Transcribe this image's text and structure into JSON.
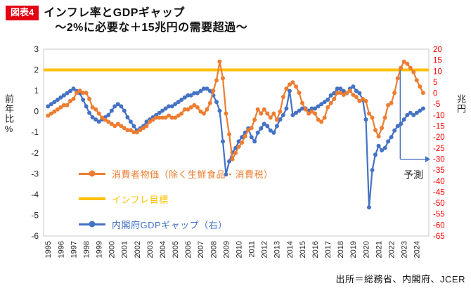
{
  "figure": {
    "label": "図表4",
    "label_bg": "#e50012",
    "title_line1": "インフレ率とGDPギャップ",
    "title_line2": "～2%に必要な＋15兆円の需要超過～",
    "source": "出所＝総務省、内閣府、JCER"
  },
  "chart_data": {
    "type": "line",
    "x_axis": {
      "start_year": 1995,
      "end_year": 2024,
      "tick_label_rotation": -90
    },
    "left_axis": {
      "title": "前年比%",
      "min": -6,
      "max": 3,
      "step": 1,
      "color": "#262626"
    },
    "right_axis": {
      "title": "兆円",
      "min": -65,
      "max": 20,
      "step": 5,
      "color": "#ff0000"
    },
    "series": [
      {
        "name": "消費者物価（除く生鮮食品・消費税）",
        "color": "#ED7D31",
        "axis": "left",
        "marker": "circle",
        "x_start": 1995,
        "x_step": 0.25,
        "values": [
          -0.2,
          -0.1,
          0.0,
          0.1,
          0.2,
          0.3,
          0.3,
          0.5,
          0.6,
          0.9,
          1.0,
          0.9,
          0.9,
          0.6,
          0.2,
          0.1,
          -0.1,
          -0.3,
          -0.4,
          -0.5,
          -0.6,
          -0.7,
          -0.6,
          -0.7,
          -0.8,
          -0.9,
          -0.9,
          -1.0,
          -1.0,
          -0.9,
          -0.8,
          -0.7,
          -0.5,
          -0.4,
          -0.3,
          -0.3,
          -0.3,
          -0.3,
          -0.2,
          -0.3,
          -0.3,
          -0.2,
          -0.1,
          0.1,
          0.1,
          0.2,
          0.3,
          0.2,
          0.0,
          -0.1,
          0.1,
          0.4,
          1.0,
          1.5,
          2.4,
          1.6,
          -0.1,
          -1.1,
          -2.3,
          -2.0,
          -1.7,
          -1.5,
          -1.2,
          -0.9,
          -0.8,
          -0.4,
          0.1,
          -0.1,
          0.1,
          -0.1,
          -0.3,
          -0.1,
          -0.4,
          0.0,
          0.7,
          1.1,
          1.3,
          1.4,
          1.2,
          0.9,
          0.4,
          0.1,
          -0.1,
          0.0,
          -0.1,
          -0.4,
          -0.5,
          -0.3,
          0.2,
          0.4,
          0.6,
          0.9,
          0.9,
          0.8,
          0.9,
          1.0,
          0.8,
          0.7,
          0.5,
          0.6,
          0.5,
          -0.1,
          -0.3,
          -0.9,
          -1.2,
          -0.8,
          -0.3,
          0.3,
          0.4,
          0.9,
          1.6,
          2.1,
          2.4,
          2.3,
          2.1,
          1.9,
          1.5,
          1.2,
          0.9
        ]
      },
      {
        "name": "インフレ目標",
        "color": "#FFC000",
        "axis": "left",
        "kind": "hline",
        "value": 2
      },
      {
        "name": "内閣府GDPギャップ（右）",
        "color": "#4472C4",
        "axis": "right",
        "marker": "circle",
        "x_start": 1995,
        "x_step": 0.25,
        "values": [
          -6,
          -5,
          -4,
          -3,
          -2,
          -1,
          0,
          1,
          2,
          1,
          0,
          -3,
          -6,
          -9,
          -11,
          -12,
          -13,
          -12,
          -11,
          -10,
          -8,
          -6,
          -5,
          -6,
          -8,
          -11,
          -13,
          -15,
          -17,
          -16,
          -15,
          -13,
          -12,
          -11,
          -10,
          -9,
          -8,
          -7,
          -6,
          -6,
          -5,
          -4,
          -3,
          -2,
          -1,
          -1,
          0,
          0,
          1,
          2,
          2,
          1,
          -1,
          -4,
          -8,
          -22,
          -37,
          -31,
          -27,
          -25,
          -22,
          -20,
          -18,
          -16,
          -20,
          -22,
          -18,
          -16,
          -14,
          -15,
          -17,
          -18,
          -15,
          -12,
          -10,
          -7,
          1,
          -10,
          -9,
          -8,
          -7,
          -7,
          -8,
          -7,
          -7,
          -6,
          -5,
          -4,
          -3,
          -1,
          0,
          2,
          2,
          1,
          0,
          2,
          3,
          1,
          0,
          -3,
          -12,
          -52,
          -35,
          -28,
          -24,
          -26,
          -25,
          -22,
          -20,
          -17,
          -15,
          -14,
          -12,
          -10,
          -9,
          -10,
          -9,
          -8,
          -7
        ]
      }
    ],
    "annotation": {
      "label": "予測",
      "color": "#4472C4",
      "line_x": 2022.7,
      "line_y_top": 2.0,
      "line_y_bottom": -2.3,
      "arrow_end_x": 2025.2,
      "arrow_y": -2.3
    }
  }
}
